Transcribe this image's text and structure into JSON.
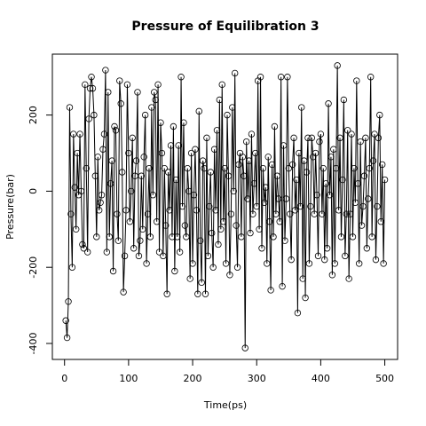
{
  "chart_data": {
    "type": "line",
    "title": "Pressure of Equilibration 3",
    "x_label": "Time(ps)",
    "y_label": "Pressure(bar)",
    "color": "#000000",
    "markers": true,
    "xlim": [
      -19,
      520
    ],
    "xticks": [
      0,
      100,
      200,
      300,
      400,
      500
    ],
    "ylim": [
      -442,
      360
    ],
    "yticks": [
      -400,
      -200,
      0,
      200
    ],
    "x": [
      2,
      4,
      6,
      8,
      10,
      12,
      14,
      16,
      18,
      20,
      22,
      24,
      26,
      28,
      30,
      32,
      34,
      36,
      38,
      40,
      42,
      44,
      46,
      48,
      50,
      52,
      54,
      56,
      58,
      60,
      62,
      64,
      66,
      68,
      70,
      72,
      74,
      76,
      78,
      80,
      82,
      84,
      86,
      88,
      90,
      92,
      94,
      96,
      98,
      100,
      102,
      104,
      106,
      108,
      110,
      112,
      114,
      116,
      118,
      120,
      122,
      124,
      126,
      128,
      130,
      132,
      134,
      136,
      138,
      140,
      142,
      144,
      146,
      148,
      150,
      152,
      154,
      156,
      158,
      160,
      162,
      164,
      166,
      168,
      170,
      172,
      174,
      176,
      178,
      180,
      182,
      184,
      186,
      188,
      190,
      192,
      194,
      196,
      198,
      200,
      202,
      204,
      206,
      208,
      210,
      212,
      214,
      216,
      218,
      220,
      222,
      224,
      226,
      228,
      230,
      232,
      234,
      236,
      238,
      240,
      242,
      244,
      246,
      248,
      250,
      252,
      254,
      256,
      258,
      260,
      262,
      264,
      266,
      268,
      270,
      272,
      274,
      276,
      278,
      280,
      282,
      284,
      286,
      288,
      290,
      292,
      294,
      296,
      298,
      300,
      302,
      304,
      306,
      308,
      310,
      312,
      314,
      316,
      318,
      320,
      322,
      324,
      326,
      328,
      330,
      332,
      334,
      336,
      338,
      340,
      342,
      344,
      346,
      348,
      350,
      352,
      354,
      356,
      358,
      360,
      362,
      364,
      366,
      368,
      370,
      372,
      374,
      376,
      378,
      380,
      382,
      384,
      386,
      388,
      390,
      392,
      394,
      396,
      398,
      400,
      402,
      404,
      406,
      408,
      410,
      412,
      414,
      416,
      418,
      420,
      422,
      424,
      426,
      428,
      430,
      432,
      434,
      436,
      438,
      440,
      442,
      444,
      446,
      448,
      450,
      452,
      454,
      456,
      458,
      460,
      462,
      464,
      466,
      468,
      470,
      472,
      474,
      476,
      478,
      480,
      482,
      484,
      486,
      488,
      490,
      492,
      494,
      496,
      498,
      500
    ],
    "values": [
      -340,
      -385,
      -290,
      220,
      -60,
      -200,
      150,
      10,
      -100,
      100,
      -10,
      150,
      0,
      -140,
      -150,
      280,
      60,
      -160,
      190,
      270,
      300,
      270,
      200,
      40,
      -120,
      90,
      -50,
      -30,
      -10,
      110,
      150,
      318,
      -160,
      260,
      -120,
      20,
      80,
      -210,
      170,
      160,
      -60,
      -130,
      290,
      230,
      50,
      -265,
      -170,
      -50,
      280,
      100,
      -80,
      0,
      140,
      -150,
      40,
      80,
      260,
      -170,
      -130,
      40,
      -100,
      90,
      200,
      -190,
      -60,
      60,
      -120,
      220,
      -10,
      260,
      240,
      -80,
      280,
      -160,
      180,
      100,
      -170,
      60,
      -90,
      -270,
      50,
      -50,
      120,
      -120,
      170,
      -210,
      30,
      -120,
      120,
      -160,
      300,
      -40,
      180,
      -90,
      -120,
      60,
      0,
      -230,
      100,
      -190,
      -10,
      110,
      -50,
      -270,
      210,
      -130,
      -240,
      80,
      60,
      -270,
      140,
      -170,
      -40,
      50,
      -110,
      -200,
      110,
      -50,
      160,
      -140,
      240,
      -100,
      280,
      -80,
      60,
      -190,
      200,
      40,
      -220,
      -60,
      220,
      0,
      310,
      -90,
      -200,
      70,
      100,
      -120,
      90,
      40,
      -412,
      130,
      -20,
      80,
      -110,
      150,
      -60,
      20,
      100,
      -40,
      290,
      -100,
      300,
      -150,
      60,
      -30,
      10,
      -190,
      90,
      -80,
      -260,
      70,
      -120,
      170,
      -60,
      40,
      -20,
      -80,
      300,
      -250,
      120,
      -130,
      -20,
      300,
      60,
      -60,
      -180,
      70,
      140,
      -50,
      30,
      -320,
      100,
      -40,
      220,
      -230,
      80,
      -280,
      50,
      140,
      -190,
      -40,
      140,
      90,
      -60,
      100,
      -10,
      -170,
      130,
      150,
      -60,
      60,
      -180,
      20,
      -150,
      230,
      -10,
      90,
      -220,
      110,
      -190,
      60,
      330,
      -50,
      140,
      -120,
      30,
      240,
      -170,
      -60,
      160,
      -230,
      -60,
      150,
      -120,
      60,
      -30,
      290,
      20,
      -190,
      130,
      -90,
      -40,
      40,
      140,
      -150,
      -20,
      60,
      300,
      -120,
      80,
      150,
      -180,
      -40,
      140,
      200,
      -80,
      70,
      -190,
      30
    ]
  }
}
